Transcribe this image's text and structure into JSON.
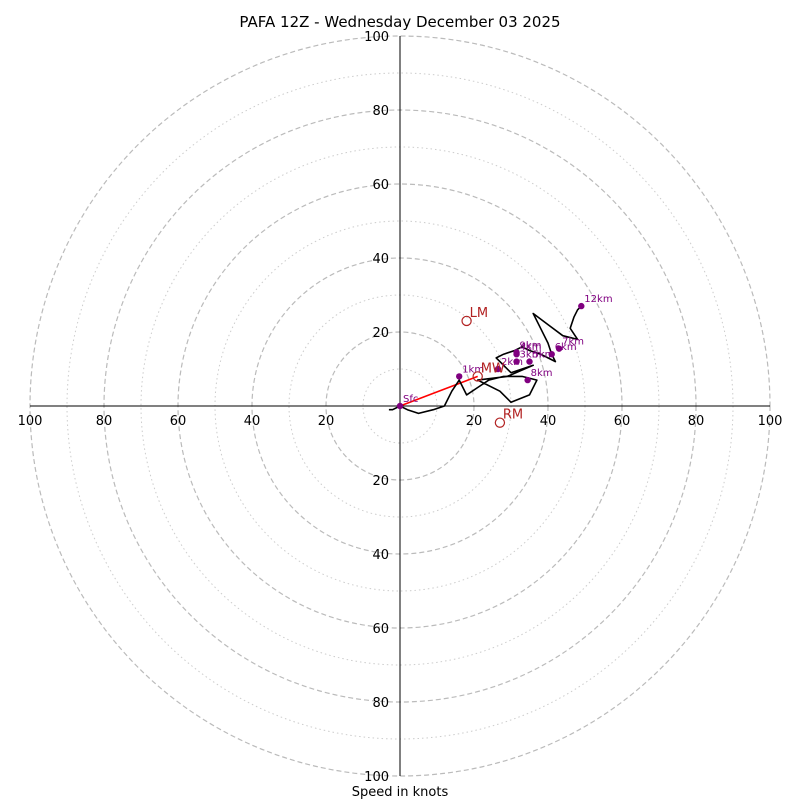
{
  "chart_data": {
    "type": "hodograph",
    "title": "PAFA 12Z - Wednesday December 03 2025",
    "xlabel": "Speed in knots",
    "units": "knots",
    "range": [
      -100,
      100
    ],
    "ring_major": [
      20,
      40,
      60,
      80,
      100
    ],
    "ring_minor": [
      10,
      30,
      50,
      70,
      90
    ],
    "tick_labels": {
      "x_left": [
        "100",
        "80",
        "60",
        "40",
        "20"
      ],
      "x_right": [
        "20",
        "40",
        "60",
        "80",
        "100"
      ],
      "y_top": [
        "100",
        "80",
        "60",
        "40",
        "20"
      ],
      "y_bottom": [
        "20",
        "40",
        "60",
        "80",
        "100"
      ]
    },
    "trace": [
      [
        -3,
        -1
      ],
      [
        -2,
        -1
      ],
      [
        0,
        0
      ],
      [
        2,
        -1
      ],
      [
        5,
        -2
      ],
      [
        9,
        -1
      ],
      [
        12,
        0
      ],
      [
        14,
        4
      ],
      [
        16,
        7
      ],
      [
        18,
        3
      ],
      [
        21,
        5
      ],
      [
        24,
        7
      ],
      [
        28,
        8
      ],
      [
        33,
        8
      ],
      [
        37,
        7
      ],
      [
        35,
        3
      ],
      [
        30,
        1
      ],
      [
        27,
        4
      ],
      [
        21,
        7
      ],
      [
        29,
        8
      ],
      [
        36,
        11
      ],
      [
        30,
        9
      ],
      [
        27,
        12
      ],
      [
        26,
        13
      ],
      [
        28,
        14
      ],
      [
        31,
        15
      ],
      [
        33,
        16
      ],
      [
        35,
        15
      ],
      [
        38,
        14
      ],
      [
        40,
        13
      ],
      [
        42,
        12
      ],
      [
        41,
        14
      ],
      [
        40,
        17
      ],
      [
        38,
        21
      ],
      [
        36,
        25
      ],
      [
        40,
        22
      ],
      [
        44,
        19
      ],
      [
        48,
        18
      ],
      [
        46,
        21
      ],
      [
        47,
        24
      ],
      [
        48,
        26
      ],
      [
        49,
        27
      ]
    ],
    "heights": [
      {
        "label": "Sfc",
        "u": 0,
        "v": 0
      },
      {
        "label": "1km",
        "u": 16,
        "v": 8
      },
      {
        "label": "2km",
        "u": 26.5,
        "v": 10
      },
      {
        "label": "3km",
        "u": 31.5,
        "v": 12
      },
      {
        "label": "4km",
        "u": 31.5,
        "v": 14
      },
      {
        "label": "5km",
        "u": 35,
        "v": 12
      },
      {
        "label": "6km",
        "u": 41,
        "v": 14
      },
      {
        "label": "7km",
        "u": 43,
        "v": 15.5
      },
      {
        "label": "8km",
        "u": 34.5,
        "v": 7
      },
      {
        "label": "9km",
        "u": 31.5,
        "v": 14.5
      },
      {
        "label": "12km",
        "u": 49,
        "v": 27
      }
    ],
    "shear_vector": {
      "from": [
        0,
        0
      ],
      "to": [
        21,
        8
      ]
    },
    "motions": [
      {
        "label": "LM",
        "u": 18,
        "v": 23
      },
      {
        "label": "MW",
        "u": 21,
        "v": 8
      },
      {
        "label": "RM",
        "u": 27,
        "v": -4.5
      }
    ],
    "colors": {
      "trace": "#000000",
      "height_marker": "#800080",
      "shear": "#ff0000",
      "motion": "#b22222",
      "ring": "#bbbbbb"
    }
  }
}
